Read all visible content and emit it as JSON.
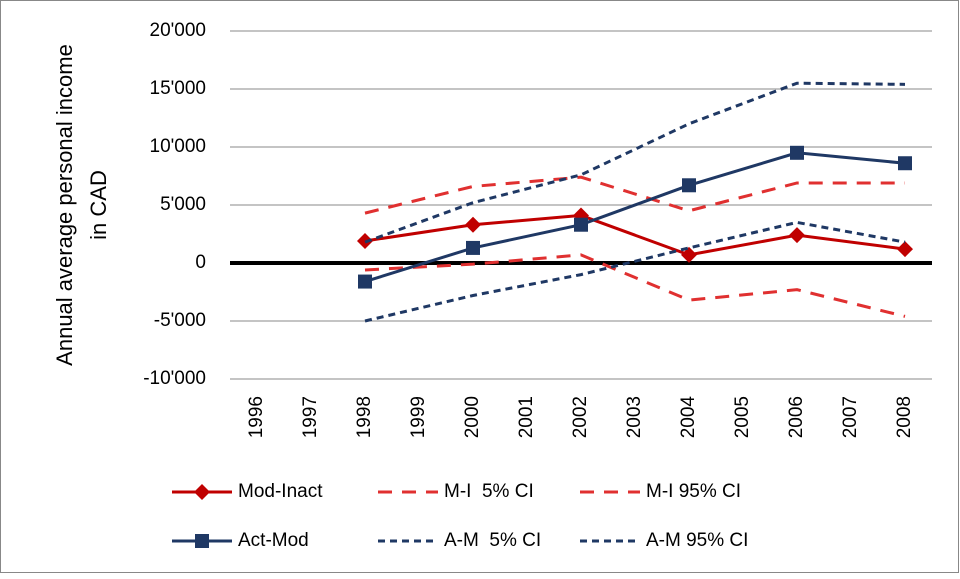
{
  "chart_data": {
    "type": "line",
    "y_label": [
      "Annual average personal income",
      "in CAD"
    ],
    "x": [
      1998,
      2000,
      2002,
      2004,
      2006,
      2008
    ],
    "xlim": [
      1995.5,
      2008.5
    ],
    "xticks": [
      1996,
      1997,
      1998,
      1999,
      2000,
      2001,
      2002,
      2003,
      2004,
      2005,
      2006,
      2007,
      2008
    ],
    "ylim": [
      -10000,
      20000
    ],
    "yticks": [
      {
        "value": -10000,
        "label": "-10'000"
      },
      {
        "value": -5000,
        "label": "-5'000"
      },
      0,
      {
        "value": 5000,
        "label": "5'000"
      },
      {
        "value": 10000,
        "label": "10'000"
      },
      {
        "value": 15000,
        "label": "15'000"
      },
      {
        "value": 20000,
        "label": "20'000"
      }
    ],
    "grid": true,
    "legend": "bottom",
    "series": [
      {
        "name": "Mod-Inact",
        "color": "#c00000",
        "marker": "diamond",
        "dash": "solid",
        "values": [
          1900,
          3300,
          4100,
          700,
          2400,
          1200
        ]
      },
      {
        "name": "M-I  5% CI",
        "color": "#e03030",
        "dash": "long",
        "values": [
          -600,
          -100,
          700,
          -3200,
          -2300,
          -4600
        ]
      },
      {
        "name": "M-I 95% CI",
        "color": "#e03030",
        "dash": "long",
        "values": [
          4300,
          6600,
          7400,
          4500,
          6900,
          6900
        ]
      },
      {
        "name": "Act-Mod",
        "color": "#1f3864",
        "marker": "square",
        "dash": "solid",
        "values": [
          -1600,
          1300,
          3300,
          6700,
          9500,
          8600
        ]
      },
      {
        "name": "A-M  5% CI",
        "color": "#1f3864",
        "dash": "short",
        "values": [
          -5000,
          -2800,
          -1000,
          1300,
          3500,
          1800
        ]
      },
      {
        "name": "A-M 95% CI",
        "color": "#1f3864",
        "dash": "short",
        "values": [
          1800,
          5200,
          7600,
          12000,
          15500,
          15400
        ]
      }
    ]
  }
}
